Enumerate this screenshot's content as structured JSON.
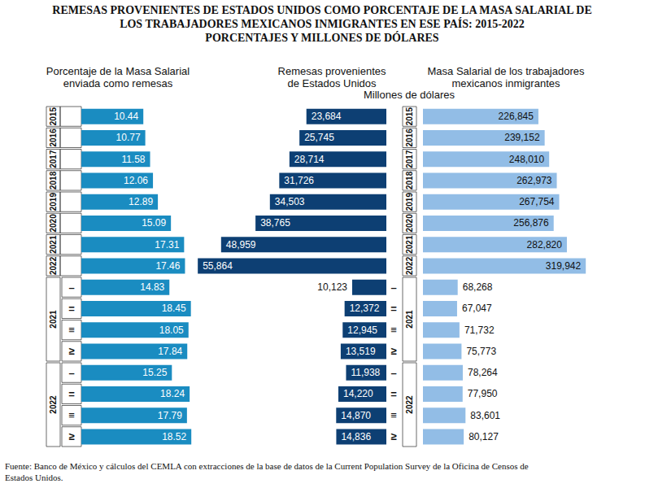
{
  "title": "REMESAS PROVENIENTES DE ESTADOS UNIDOS COMO PORCENTAJE DE LA MASA SALARIAL DE\nLOS TRABAJADORES MEXICANOS INMIGRANTES EN ESE PAÍS: 2015-2022\nPORCENTAJES Y MILLONES DE DÓLARES",
  "source": "Fuente: Banco de México y cálculos del CEMLA con extracciones de la base de datos de la Current Population Survey de la Oficina de Censos de\nEstados Unidos.",
  "chart_data": [
    {
      "type": "bar",
      "orientation": "horizontal",
      "title": "Porcentaje de la Masa Salarial\nenviada como remesas",
      "categories": [
        "2015",
        "2016",
        "2017",
        "2018",
        "2019",
        "2020",
        "2021",
        "2022",
        "–",
        "=",
        "≡",
        "≥",
        "–",
        "=",
        "≡",
        "≥"
      ],
      "category_groups": [
        {
          "label": "2021",
          "first": 8,
          "count": 4
        },
        {
          "label": "2022",
          "first": 12,
          "count": 4
        }
      ],
      "values": [
        10.44,
        10.77,
        11.58,
        12.06,
        12.89,
        15.09,
        17.31,
        17.46,
        14.83,
        18.45,
        18.05,
        17.84,
        15.25,
        18.24,
        17.79,
        18.52
      ],
      "color": "#1a8cc1",
      "xlim": [
        0,
        20
      ],
      "data_labels": true,
      "tick_labels": false,
      "grid": false
    },
    {
      "type": "bar",
      "orientation": "horizontal",
      "title": "Remesas provenientes\nde Estados Unidos",
      "subtitle": "Millones de dólares",
      "categories": [
        "2015",
        "2016",
        "2017",
        "2018",
        "2019",
        "2020",
        "2021",
        "2022",
        "–",
        "=",
        "≡",
        "≥",
        "–",
        "=",
        "≡",
        "≥"
      ],
      "category_groups": [
        {
          "label": "2021",
          "first": 8,
          "count": 4
        },
        {
          "label": "2022",
          "first": 12,
          "count": 4
        }
      ],
      "values": [
        23684,
        25745,
        28714,
        31726,
        34503,
        38765,
        48959,
        55864,
        10123,
        12372,
        12945,
        13519,
        11938,
        14220,
        14870,
        14836
      ],
      "value_labels": [
        "23,684",
        "25,745",
        "28,714",
        "31,726",
        "34,503",
        "38,765",
        "48,959",
        "55,864",
        "10,123",
        "12,372",
        "12,945",
        "13,519",
        "11,938",
        "14,220",
        "14,870",
        "14,836"
      ],
      "color": "#0d3f73",
      "xlim": [
        0,
        60000
      ],
      "data_labels": true,
      "tick_labels": false,
      "grid": false
    },
    {
      "type": "bar",
      "orientation": "horizontal",
      "title": "Masa Salarial de los trabajadores\nmexicanos inmigrantes",
      "categories": [
        "2015",
        "2016",
        "2017",
        "2018",
        "2019",
        "2020",
        "2021",
        "2022",
        "–",
        "=",
        "≡",
        "≥",
        "–",
        "=",
        "≡",
        "≥"
      ],
      "category_groups": [
        {
          "label": "2021",
          "first": 8,
          "count": 4
        },
        {
          "label": "2022",
          "first": 12,
          "count": 4
        }
      ],
      "values": [
        226845,
        239152,
        248010,
        262973,
        267754,
        256876,
        282820,
        319942,
        68268,
        67047,
        71732,
        75773,
        78264,
        77950,
        83601,
        80127
      ],
      "value_labels": [
        "226,845",
        "239,152",
        "248,010",
        "262,973",
        "267,754",
        "256,876",
        "282,820",
        "319,942",
        "68,268",
        "67,047",
        "71,732",
        "75,773",
        "78,264",
        "77,950",
        "83,601",
        "80,127"
      ],
      "color": "#92bde6",
      "xlim": [
        0,
        350000
      ],
      "data_labels": true,
      "tick_labels": false,
      "grid": false
    }
  ]
}
